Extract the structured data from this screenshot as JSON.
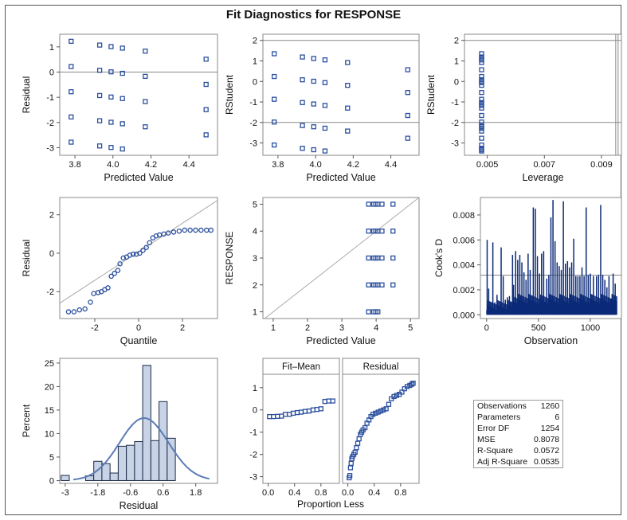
{
  "page": {
    "title": "Fit Diagnostics for RESPONSE"
  },
  "colors": {
    "marker": "#2a4f9e",
    "bar_fill": "#c9d3e6",
    "bar_stroke": "#1b2a48",
    "ref_line": "#999999",
    "curve": "#5a7bb5",
    "needle": "#0b2a78"
  },
  "chart_data": [
    {
      "id": "residual-vs-predicted",
      "type": "scatter",
      "xlabel": "Predicted Value",
      "ylabel": "Residual",
      "xlim": [
        3.72,
        4.55
      ],
      "ylim": [
        -3.3,
        1.5
      ],
      "xticks": [
        "3.8",
        "4.0",
        "4.2",
        "4.4"
      ],
      "yticks": [
        "1",
        "0",
        "-1",
        "-2",
        "-3"
      ],
      "ref_lines": {
        "y": [
          0
        ]
      },
      "points": [
        [
          3.78,
          1.22
        ],
        [
          3.78,
          0.22
        ],
        [
          3.78,
          -0.78
        ],
        [
          3.78,
          -1.78
        ],
        [
          3.78,
          -2.78
        ],
        [
          3.93,
          1.07
        ],
        [
          3.93,
          0.07
        ],
        [
          3.93,
          -0.93
        ],
        [
          3.93,
          -1.93
        ],
        [
          3.93,
          -2.93
        ],
        [
          3.99,
          1.01
        ],
        [
          3.99,
          0.01
        ],
        [
          3.99,
          -0.99
        ],
        [
          3.99,
          -1.99
        ],
        [
          3.99,
          -2.99
        ],
        [
          4.05,
          0.95
        ],
        [
          4.05,
          -0.05
        ],
        [
          4.05,
          -1.05
        ],
        [
          4.05,
          -2.05
        ],
        [
          4.05,
          -3.05
        ],
        [
          4.17,
          0.83
        ],
        [
          4.17,
          -0.17
        ],
        [
          4.17,
          -1.17
        ],
        [
          4.17,
          -2.17
        ],
        [
          4.49,
          0.51
        ],
        [
          4.49,
          -0.49
        ],
        [
          4.49,
          -1.49
        ],
        [
          4.49,
          -2.49
        ]
      ]
    },
    {
      "id": "rstudent-vs-predicted",
      "type": "scatter",
      "xlabel": "Predicted Value",
      "ylabel": "RStudent",
      "xlim": [
        3.72,
        4.55
      ],
      "ylim": [
        -3.6,
        2.3
      ],
      "xticks": [
        "3.8",
        "4.0",
        "4.2",
        "4.4"
      ],
      "yticks": [
        "2",
        "1",
        "0",
        "-1",
        "-2",
        "-3"
      ],
      "ref_lines": {
        "y": [
          2,
          -2
        ]
      },
      "points": [
        [
          3.78,
          1.35
        ],
        [
          3.78,
          0.24
        ],
        [
          3.78,
          -0.87
        ],
        [
          3.78,
          -1.98
        ],
        [
          3.78,
          -3.1
        ],
        [
          3.93,
          1.19
        ],
        [
          3.93,
          0.08
        ],
        [
          3.93,
          -1.03
        ],
        [
          3.93,
          -2.15
        ],
        [
          3.93,
          -3.26
        ],
        [
          3.99,
          1.12
        ],
        [
          3.99,
          0.01
        ],
        [
          3.99,
          -1.1
        ],
        [
          3.99,
          -2.21
        ],
        [
          3.99,
          -3.33
        ],
        [
          4.05,
          1.05
        ],
        [
          4.05,
          -0.06
        ],
        [
          4.05,
          -1.17
        ],
        [
          4.05,
          -2.28
        ],
        [
          4.05,
          -3.39
        ],
        [
          4.17,
          0.92
        ],
        [
          4.17,
          -0.19
        ],
        [
          4.17,
          -1.3
        ],
        [
          4.17,
          -2.42
        ],
        [
          4.49,
          0.57
        ],
        [
          4.49,
          -0.54
        ],
        [
          4.49,
          -1.66
        ],
        [
          4.49,
          -2.77
        ]
      ]
    },
    {
      "id": "rstudent-vs-leverage",
      "type": "scatter",
      "xlabel": "Leverage",
      "ylabel": "RStudent",
      "xlim": [
        0.0042,
        0.0097
      ],
      "ylim": [
        -3.6,
        2.3
      ],
      "xticks": [
        "0.005",
        "0.007",
        "0.009"
      ],
      "yticks": [
        "2",
        "1",
        "0",
        "-1",
        "-2",
        "-3"
      ],
      "ref_lines": {
        "y": [
          2,
          -2
        ],
        "x": [
          0.0095
        ]
      },
      "points": [
        [
          0.0048,
          1.35
        ],
        [
          0.0048,
          1.19
        ],
        [
          0.0048,
          1.12
        ],
        [
          0.0048,
          1.05
        ],
        [
          0.0048,
          0.92
        ],
        [
          0.0048,
          0.57
        ],
        [
          0.0048,
          0.24
        ],
        [
          0.0048,
          0.08
        ],
        [
          0.0048,
          0.01
        ],
        [
          0.0048,
          -0.06
        ],
        [
          0.0048,
          -0.19
        ],
        [
          0.0048,
          -0.54
        ],
        [
          0.0048,
          -0.87
        ],
        [
          0.0048,
          -1.03
        ],
        [
          0.0048,
          -1.1
        ],
        [
          0.0048,
          -1.17
        ],
        [
          0.0048,
          -1.3
        ],
        [
          0.0048,
          -1.66
        ],
        [
          0.0048,
          -1.98
        ],
        [
          0.0048,
          -2.15
        ],
        [
          0.0048,
          -2.21
        ],
        [
          0.0048,
          -2.28
        ],
        [
          0.0048,
          -2.42
        ],
        [
          0.0048,
          -2.77
        ],
        [
          0.0048,
          -3.1
        ],
        [
          0.0048,
          -3.26
        ],
        [
          0.0048,
          -3.33
        ],
        [
          0.0048,
          -3.39
        ]
      ]
    },
    {
      "id": "residual-qq",
      "type": "scatter",
      "xlabel": "Quantile",
      "ylabel": "Residual",
      "xlim": [
        -3.6,
        3.6
      ],
      "ylim": [
        -3.4,
        2.9
      ],
      "xticks": [
        "-2",
        "0",
        "2"
      ],
      "yticks": [
        "2",
        "0",
        "-2"
      ],
      "ref_lines": {
        "diagonal": [
          [
            -3.6,
            -2.6
          ],
          [
            3.6,
            2.75
          ]
        ]
      },
      "points": [
        [
          -3.2,
          -3.05
        ],
        [
          -2.95,
          -3.05
        ],
        [
          -2.7,
          -2.95
        ],
        [
          -2.45,
          -2.9
        ],
        [
          -2.2,
          -2.55
        ],
        [
          -2.05,
          -2.1
        ],
        [
          -1.85,
          -2.05
        ],
        [
          -1.7,
          -2.0
        ],
        [
          -1.55,
          -1.9
        ],
        [
          -1.4,
          -1.8
        ],
        [
          -1.25,
          -1.2
        ],
        [
          -1.1,
          -1.05
        ],
        [
          -0.95,
          -0.9
        ],
        [
          -0.85,
          -0.55
        ],
        [
          -0.7,
          -0.25
        ],
        [
          -0.55,
          -0.2
        ],
        [
          -0.4,
          -0.1
        ],
        [
          -0.25,
          -0.05
        ],
        [
          -0.1,
          -0.05
        ],
        [
          0.05,
          0.0
        ],
        [
          0.2,
          0.15
        ],
        [
          0.35,
          0.3
        ],
        [
          0.5,
          0.55
        ],
        [
          0.65,
          0.8
        ],
        [
          0.8,
          0.9
        ],
        [
          0.95,
          0.95
        ],
        [
          1.15,
          1.0
        ],
        [
          1.35,
          1.05
        ],
        [
          1.6,
          1.1
        ],
        [
          1.85,
          1.15
        ],
        [
          2.1,
          1.2
        ],
        [
          2.35,
          1.2
        ],
        [
          2.6,
          1.2
        ],
        [
          2.85,
          1.2
        ],
        [
          3.1,
          1.2
        ],
        [
          3.3,
          1.2
        ]
      ]
    },
    {
      "id": "response-vs-predicted",
      "type": "scatter",
      "xlabel": "Predicted Value",
      "ylabel": "RESPONSE",
      "xlim": [
        0.7,
        5.25
      ],
      "ylim": [
        0.75,
        5.25
      ],
      "xticks": [
        "1",
        "2",
        "3",
        "4",
        "5"
      ],
      "yticks": [
        "5",
        "4",
        "3",
        "2",
        "1"
      ],
      "ref_lines": {
        "diagonal": [
          [
            0.75,
            0.75
          ],
          [
            5.25,
            5.25
          ]
        ]
      },
      "points": [
        [
          3.78,
          5
        ],
        [
          3.93,
          5
        ],
        [
          3.99,
          5
        ],
        [
          4.05,
          5
        ],
        [
          4.17,
          5
        ],
        [
          4.49,
          5
        ],
        [
          3.78,
          4
        ],
        [
          3.93,
          4
        ],
        [
          3.99,
          4
        ],
        [
          4.05,
          4
        ],
        [
          4.17,
          4
        ],
        [
          4.49,
          4
        ],
        [
          3.78,
          3
        ],
        [
          3.93,
          3
        ],
        [
          3.99,
          3
        ],
        [
          4.05,
          3
        ],
        [
          4.17,
          3
        ],
        [
          4.49,
          3
        ],
        [
          3.78,
          2
        ],
        [
          3.93,
          2
        ],
        [
          3.99,
          2
        ],
        [
          4.05,
          2
        ],
        [
          4.17,
          2
        ],
        [
          4.49,
          2
        ],
        [
          3.78,
          1
        ],
        [
          3.93,
          1
        ],
        [
          3.99,
          1
        ],
        [
          4.05,
          1
        ]
      ]
    },
    {
      "id": "cooks-d",
      "type": "bar",
      "xlabel": "Observation",
      "ylabel": "Cook's D",
      "xlim": [
        -60,
        1300
      ],
      "ylim": [
        -0.0003,
        0.0094
      ],
      "xticks": [
        "0",
        "500",
        "1000"
      ],
      "yticks": [
        "0.008",
        "0.006",
        "0.004",
        "0.002",
        "0.000"
      ],
      "ref_lines": {
        "y": [
          0.00318
        ]
      },
      "bars": [
        [
          5,
          0.006
        ],
        [
          20,
          0.0021
        ],
        [
          40,
          0.0006
        ],
        [
          60,
          0.0058
        ],
        [
          80,
          0.001
        ],
        [
          100,
          0.0016
        ],
        [
          110,
          0.0007
        ],
        [
          140,
          0.0054
        ],
        [
          160,
          0.0031
        ],
        [
          180,
          0.0012
        ],
        [
          200,
          0.0014
        ],
        [
          220,
          0.0015
        ],
        [
          250,
          0.0048
        ],
        [
          260,
          0.0024
        ],
        [
          280,
          0.0051
        ],
        [
          300,
          0.0044
        ],
        [
          320,
          0.0048
        ],
        [
          340,
          0.0042
        ],
        [
          360,
          0.0034
        ],
        [
          380,
          0.0028
        ],
        [
          400,
          0.0049
        ],
        [
          420,
          0.0036
        ],
        [
          450,
          0.0086
        ],
        [
          470,
          0.0085
        ],
        [
          490,
          0.0047
        ],
        [
          510,
          0.0033
        ],
        [
          530,
          0.0049
        ],
        [
          550,
          0.0051
        ],
        [
          580,
          0.0029
        ],
        [
          600,
          0.0032
        ],
        [
          620,
          0.0078
        ],
        [
          640,
          0.0092
        ],
        [
          660,
          0.0059
        ],
        [
          680,
          0.0042
        ],
        [
          700,
          0.0039
        ],
        [
          720,
          0.0036
        ],
        [
          740,
          0.0091
        ],
        [
          760,
          0.0041
        ],
        [
          780,
          0.0043
        ],
        [
          800,
          0.0038
        ],
        [
          820,
          0.0042
        ],
        [
          840,
          0.0061
        ],
        [
          860,
          0.0031
        ],
        [
          880,
          0.0031
        ],
        [
          900,
          0.0031
        ],
        [
          920,
          0.0038
        ],
        [
          940,
          0.0031
        ],
        [
          960,
          0.0086
        ],
        [
          980,
          0.0032
        ],
        [
          1000,
          0.0033
        ],
        [
          1030,
          0.0031
        ],
        [
          1060,
          0.0031
        ],
        [
          1080,
          0.0032
        ],
        [
          1100,
          0.0088
        ],
        [
          1120,
          0.0032
        ],
        [
          1140,
          0.0028
        ],
        [
          1160,
          0.0022
        ],
        [
          1180,
          0.0031
        ],
        [
          1200,
          0.0013
        ],
        [
          1220,
          0.0033
        ],
        [
          1240,
          0.0025
        ]
      ]
    },
    {
      "id": "residual-histogram",
      "type": "bar",
      "xlabel": "Residual",
      "ylabel": "Percent",
      "xlim": [
        -3.2,
        2.6
      ],
      "ylim": [
        -0.6,
        26
      ],
      "xticks": [
        "-3",
        "-1.8",
        "-0.6",
        "0.6",
        "1.8"
      ],
      "yticks": [
        "25",
        "20",
        "15",
        "10",
        "5",
        "0"
      ],
      "bin_width": 0.3,
      "bins": [
        {
          "x0": -3.15,
          "value": 1.1
        },
        {
          "x0": -2.85,
          "value": 0.0
        },
        {
          "x0": -2.55,
          "value": 0.0
        },
        {
          "x0": -2.25,
          "value": 1.0
        },
        {
          "x0": -1.95,
          "value": 4.1
        },
        {
          "x0": -1.65,
          "value": 3.6
        },
        {
          "x0": -1.35,
          "value": 1.6
        },
        {
          "x0": -1.05,
          "value": 7.3
        },
        {
          "x0": -0.75,
          "value": 7.5
        },
        {
          "x0": -0.45,
          "value": 8.3
        },
        {
          "x0": -0.15,
          "value": 24.5
        },
        {
          "x0": 0.15,
          "value": 8.5
        },
        {
          "x0": 0.45,
          "value": 16.8
        },
        {
          "x0": 0.75,
          "value": 9.0
        },
        {
          "x0": 1.05,
          "value": 0.0
        }
      ],
      "normal_curve": {
        "mean": -0.1,
        "sd": 0.9
      }
    },
    {
      "id": "fit-mean",
      "type": "scatter",
      "title": "Fit–Mean",
      "xlabel": "",
      "ylabel": "",
      "xlim": [
        -0.08,
        1.08
      ],
      "ylim": [
        -3.3,
        1.6
      ],
      "xticks": [
        "0.0",
        "0.4",
        "0.8"
      ],
      "yticks": [
        "1",
        "0",
        "-1",
        "-2",
        "-3"
      ],
      "points": [
        [
          0.02,
          -0.3
        ],
        [
          0.08,
          -0.3
        ],
        [
          0.14,
          -0.29
        ],
        [
          0.2,
          -0.28
        ],
        [
          0.26,
          -0.2
        ],
        [
          0.32,
          -0.2
        ],
        [
          0.38,
          -0.15
        ],
        [
          0.44,
          -0.12
        ],
        [
          0.5,
          -0.1
        ],
        [
          0.56,
          -0.07
        ],
        [
          0.62,
          -0.05
        ],
        [
          0.68,
          0.0
        ],
        [
          0.74,
          0.02
        ],
        [
          0.8,
          0.05
        ],
        [
          0.86,
          0.38
        ],
        [
          0.92,
          0.4
        ],
        [
          0.98,
          0.4
        ]
      ]
    },
    {
      "id": "residual-spread",
      "type": "scatter",
      "title": "Residual",
      "xlabel": "",
      "ylabel": "",
      "xlim": [
        -0.08,
        1.08
      ],
      "ylim": [
        -3.3,
        1.6
      ],
      "xticks": [
        "0.0",
        "0.4",
        "0.8"
      ],
      "yticks": [],
      "points": [
        [
          0.02,
          -3.05
        ],
        [
          0.03,
          -2.95
        ],
        [
          0.04,
          -2.6
        ],
        [
          0.05,
          -2.4
        ],
        [
          0.06,
          -2.2
        ],
        [
          0.07,
          -2.1
        ],
        [
          0.09,
          -2.0
        ],
        [
          0.11,
          -1.9
        ],
        [
          0.13,
          -1.7
        ],
        [
          0.15,
          -1.5
        ],
        [
          0.17,
          -1.3
        ],
        [
          0.19,
          -1.1
        ],
        [
          0.21,
          -1.0
        ],
        [
          0.23,
          -0.9
        ],
        [
          0.26,
          -0.8
        ],
        [
          0.29,
          -0.6
        ],
        [
          0.32,
          -0.45
        ],
        [
          0.35,
          -0.3
        ],
        [
          0.38,
          -0.2
        ],
        [
          0.42,
          -0.15
        ],
        [
          0.46,
          -0.1
        ],
        [
          0.5,
          -0.05
        ],
        [
          0.54,
          0.0
        ],
        [
          0.58,
          0.05
        ],
        [
          0.62,
          0.25
        ],
        [
          0.66,
          0.5
        ],
        [
          0.7,
          0.6
        ],
        [
          0.74,
          0.65
        ],
        [
          0.78,
          0.7
        ],
        [
          0.82,
          0.8
        ],
        [
          0.86,
          0.95
        ],
        [
          0.9,
          1.05
        ],
        [
          0.94,
          1.1
        ],
        [
          0.97,
          1.15
        ],
        [
          0.99,
          1.2
        ]
      ]
    }
  ],
  "shared_xlabel": "Proportion Less",
  "stats": [
    {
      "label": "Observations",
      "value": "1260"
    },
    {
      "label": "Parameters",
      "value": "6"
    },
    {
      "label": "Error DF",
      "value": "1254"
    },
    {
      "label": "MSE",
      "value": "0.8078"
    },
    {
      "label": "R-Square",
      "value": "0.0572"
    },
    {
      "label": "Adj R-Square",
      "value": "0.0535"
    }
  ]
}
